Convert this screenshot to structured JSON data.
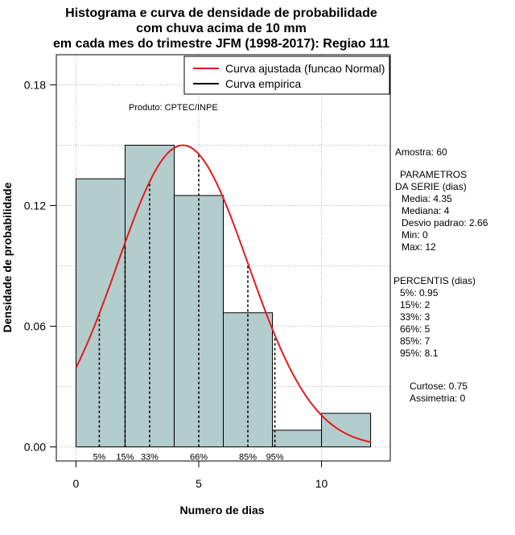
{
  "chart_data": {
    "type": "histogram",
    "title_lines": [
      "Histograma e curva de densidade de probabilidade",
      "com chuva acima de 10 mm",
      "em cada mes do trimestre JFM (1998-2017): Regiao 111"
    ],
    "xlabel": "Numero de dias",
    "ylabel": "Densidade de probabilidade",
    "xlim": [
      -0.8,
      12.8
    ],
    "ylim": [
      -0.007,
      0.195
    ],
    "x_ticks": [
      0,
      5,
      10
    ],
    "y_ticks": [
      0.0,
      0.06,
      0.12,
      0.18
    ],
    "y_tick_labels": [
      "0.00",
      "0.06",
      "0.12",
      "0.18"
    ],
    "grid": true,
    "bar_color": "#b3cccc",
    "curve_color": "#e31a1c",
    "bins": [
      {
        "x0": 0,
        "x1": 2,
        "density": 0.1333
      },
      {
        "x0": 2,
        "x1": 4,
        "density": 0.15
      },
      {
        "x0": 4,
        "x1": 6,
        "density": 0.125
      },
      {
        "x0": 6,
        "x1": 8,
        "density": 0.0667
      },
      {
        "x0": 8,
        "x1": 10,
        "density": 0.0083
      },
      {
        "x0": 10,
        "x1": 12,
        "density": 0.0167
      }
    ],
    "normal_fit": {
      "mean": 4.35,
      "sd": 2.66,
      "x_range": [
        0,
        12
      ]
    },
    "percentile_lines": [
      {
        "label": "5%",
        "x": 0.95
      },
      {
        "label": "15%",
        "x": 2
      },
      {
        "label": "33%",
        "x": 3
      },
      {
        "label": "66%",
        "x": 5
      },
      {
        "label": "85%",
        "x": 7
      },
      {
        "label": "95%",
        "x": 8.1
      }
    ],
    "legend": {
      "position": "top-right",
      "entries": [
        {
          "label": "Curva ajustada (funcao Normal)",
          "color": "#e31a1c"
        },
        {
          "label": "Curva empirica",
          "color": "#000000"
        }
      ]
    },
    "annotation": "Produto: CPTEC/INPE"
  },
  "stats": {
    "amostra": "Amostra: 60",
    "parametros_title": [
      "PARAMETROS",
      "DA SERIE (dias)"
    ],
    "parametros": [
      "Media: 4.35",
      "Mediana: 4",
      "Desvio padrao: 2.66",
      "Min: 0",
      "Max: 12"
    ],
    "percentis_title": "PERCENTIS (dias)",
    "percentis": [
      "5%: 0.95",
      "15%: 2",
      "33%: 3",
      "66%: 5",
      "85%: 7",
      "95%: 8.1"
    ],
    "curtose": "Curtose: 0.75",
    "assimetria": "Assimetria: 0"
  }
}
